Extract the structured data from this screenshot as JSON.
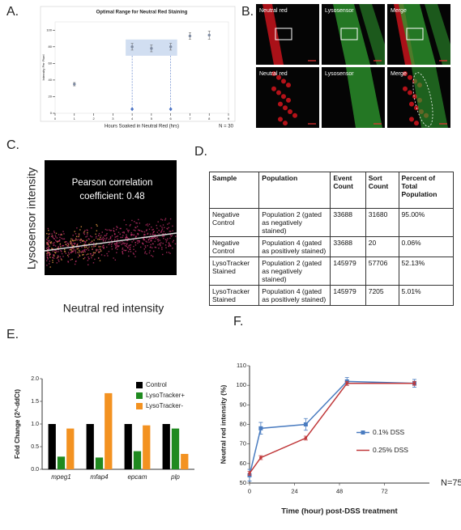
{
  "panel_labels": [
    "A.",
    "B.",
    "C.",
    "D.",
    "E.",
    "F."
  ],
  "chart_data": [
    {
      "type": "scatter",
      "title": "Optimal Range for Neutral Red Staining",
      "x_label": "Hours Soaked in Neutral Red (hrs)",
      "y_label": "Intensity Per Pixel",
      "x": [
        1,
        4,
        5,
        6,
        7,
        8
      ],
      "values": [
        35,
        80,
        78,
        80,
        93,
        94
      ],
      "errors": [
        2,
        4,
        4,
        4,
        4,
        5
      ],
      "color": "#7f8ca3",
      "markers": {
        "x": [
          4,
          6
        ],
        "values": [
          5,
          5
        ],
        "color": "#4a72c4"
      },
      "xlim": [
        0,
        9
      ],
      "xticks": [
        0,
        1,
        2,
        3,
        4,
        5,
        6,
        7,
        8,
        9
      ],
      "ylim": [
        0,
        110
      ],
      "yticks": [
        0,
        20,
        40,
        60,
        80,
        100
      ],
      "annotation": "N = 30"
    },
    {
      "type": "bar",
      "y_label": "Fold Change (2^-ddCt)",
      "categories": [
        "mpeg1",
        "mfap4",
        "epcam",
        "plp"
      ],
      "series": [
        {
          "name": "Control",
          "color": "#000000",
          "values": [
            1.0,
            1.0,
            1.0,
            1.0
          ]
        },
        {
          "name": "LysoTracker+",
          "color": "#1f8a1f",
          "values": [
            0.28,
            0.26,
            0.4,
            0.9
          ]
        },
        {
          "name": "LysoTracker-",
          "color": "#f39221",
          "values": [
            0.9,
            1.68,
            0.97,
            0.34
          ]
        }
      ],
      "ylim": [
        0,
        2
      ],
      "yticks": [
        {
          "value": 0,
          "label": "0.0"
        },
        {
          "value": 0.5,
          "label": "0.5"
        },
        {
          "value": 1,
          "label": "1.0"
        },
        {
          "value": 1.5,
          "label": "1.5"
        },
        {
          "value": 2,
          "label": "2.0"
        }
      ],
      "legend": "upper right"
    },
    {
      "type": "line",
      "x_label": "Time (hour) post-DSS treatment",
      "y_label": "Neutral red intensity (%)",
      "series": [
        {
          "name": "0.1% DSS",
          "color": "#4a7cc0",
          "marker": "square",
          "x": [
            0,
            6,
            30,
            52,
            88
          ],
          "values": [
            54,
            78,
            80,
            102,
            101
          ],
          "errors": [
            3,
            3,
            3,
            2,
            2
          ]
        },
        {
          "name": "0.25% DSS",
          "color": "#c0393b",
          "marker": "dash",
          "x": [
            0,
            6,
            30,
            52,
            88
          ],
          "values": [
            55,
            63,
            73,
            101,
            101
          ],
          "errors": [
            1,
            1,
            1,
            1,
            1
          ]
        }
      ],
      "xlim": [
        0,
        96
      ],
      "xticks": [
        0,
        24,
        48,
        72
      ],
      "ylim": [
        50,
        110
      ],
      "yticks": [
        50,
        60,
        70,
        80,
        90,
        100,
        110
      ],
      "legend": "right",
      "annotation": "N=75"
    }
  ],
  "images": {
    "titles": [
      "Neutral red",
      "Lysosensor",
      "Merge",
      "Neutral red",
      "Lysosensor",
      "Merge"
    ]
  },
  "correlation": {
    "text": [
      "Pearson correlation",
      "coefficient: 0.48"
    ],
    "y_label": "Lysosensor intensity",
    "x_label": "Neutral red  intensity"
  },
  "table": {
    "header": [
      "Sample",
      "Population",
      "Event Count",
      "Sort Count",
      "Percent of Total Population"
    ],
    "rows": [
      [
        "Negative Control",
        "Population 2 (gated as negatively stained)",
        "33688",
        "31680",
        "95.00%"
      ],
      [
        "Negative Control",
        "Population 4 (gated as positively stained)",
        "33688",
        "20",
        "0.06%"
      ],
      [
        "LysoTracker Stained",
        "Population 2 (gated as negatively stained)",
        "145979",
        "57706",
        "52.13%"
      ],
      [
        "LysoTracker Stained",
        "Population 4 (gated as positively stained)",
        "145979",
        "7205",
        "5.01%"
      ]
    ]
  }
}
